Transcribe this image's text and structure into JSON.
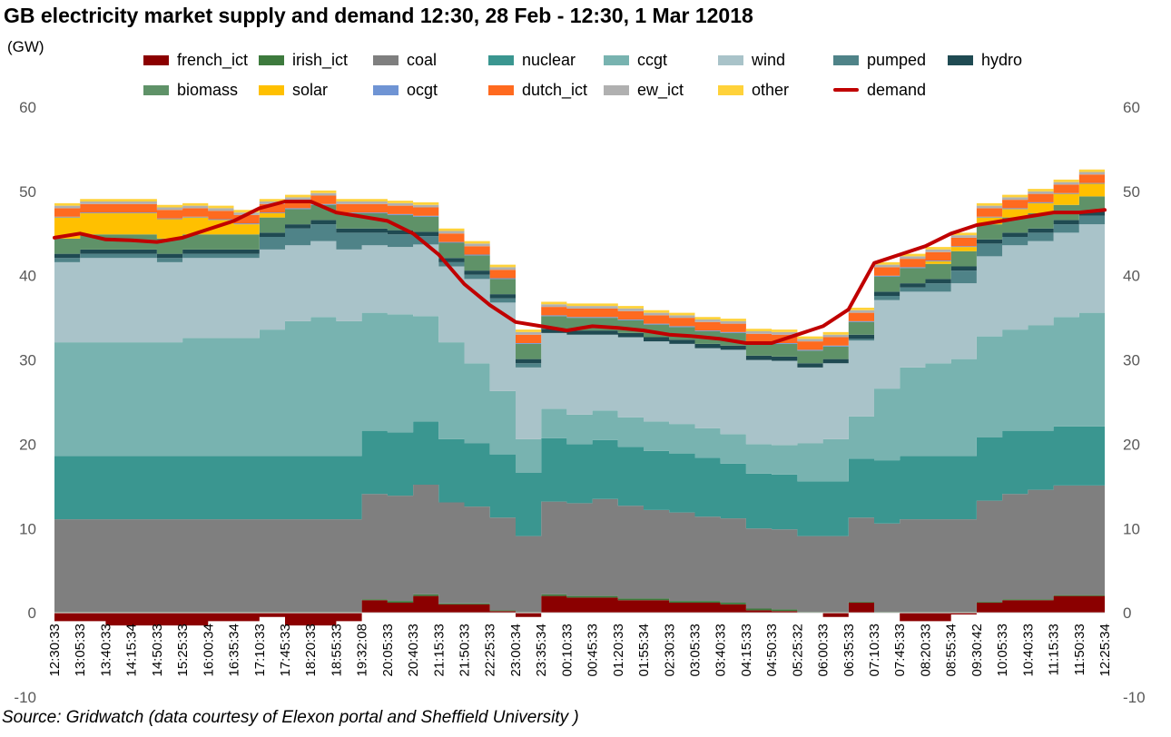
{
  "title": "GB electricity market supply and demand 12:30, 28 Feb - 12:30, 1 Mar 12018",
  "unit": "(GW)",
  "source": "Source: Gridwatch (data courtesy of Elexon portal and Sheffield University )",
  "colors": {
    "french_ict": "#8b0000",
    "irish_ict": "#3d7a3d",
    "coal": "#7f7f7f",
    "nuclear": "#3a9690",
    "ccgt": "#78b3b0",
    "wind": "#a9c3c9",
    "pumped": "#4f8388",
    "hydro": "#1f4a52",
    "biomass": "#5f9268",
    "solar": "#ffc000",
    "ocgt": "#6f94d4",
    "dutch_ict": "#ff6a1f",
    "ew_ict": "#b0b0b0",
    "other": "#ffd23a",
    "demand": "#c00000"
  },
  "chart_data": {
    "type": "area",
    "title": "GB electricity market supply and demand 12:30, 28 Feb - 12:30, 1 Mar 12018",
    "ylabel": "(GW)",
    "ylim": [
      -10,
      60
    ],
    "yticks": [
      -10,
      0,
      10,
      20,
      30,
      40,
      50,
      60
    ],
    "grid": false,
    "legend_position": "top",
    "stack_order": [
      "coal",
      "nuclear",
      "ccgt",
      "wind",
      "pumped",
      "hydro",
      "biomass",
      "solar",
      "ocgt",
      "dutch_ict",
      "ew_ict",
      "other"
    ],
    "x": [
      "12:30:33",
      "13:05:33",
      "13:40:33",
      "14:15:34",
      "14:50:33",
      "15:25:33",
      "16:00:34",
      "16:35:34",
      "17:10:33",
      "17:45:33",
      "18:20:33",
      "18:55:33",
      "19:32:08",
      "20:05:33",
      "20:40:33",
      "21:15:33",
      "21:50:33",
      "22:25:33",
      "23:00:34",
      "23:35:34",
      "00:10:33",
      "00:45:33",
      "01:20:33",
      "01:55:34",
      "02:30:33",
      "03:05:33",
      "03:40:33",
      "04:15:33",
      "04:50:33",
      "05:25:32",
      "06:00:33",
      "06:35:33",
      "07:10:33",
      "07:45:33",
      "08:20:33",
      "08:55:34",
      "09:30:42",
      "10:05:33",
      "10:40:33",
      "11:15:33",
      "11:50:33",
      "12:25:34"
    ],
    "series": [
      {
        "name": "french_ict",
        "values": [
          -1.0,
          -1.0,
          -1.5,
          -1.5,
          -1.5,
          -1.5,
          -1.0,
          -1.0,
          -0.5,
          -1.5,
          -1.5,
          -1.0,
          1.5,
          1.2,
          2.0,
          1.0,
          1.0,
          0.2,
          -0.5,
          2.0,
          1.8,
          1.8,
          1.5,
          1.5,
          1.2,
          1.2,
          1.0,
          0.3,
          0.2,
          0.0,
          -0.5,
          1.2,
          0.0,
          -1.0,
          -1.0,
          -0.2,
          1.2,
          1.5,
          1.5,
          2.0,
          2.0,
          1.5
        ]
      },
      {
        "name": "irish_ict",
        "values": [
          0.1,
          0.1,
          0.1,
          0.1,
          0.1,
          0.1,
          0.1,
          0.1,
          0.1,
          0.1,
          0.1,
          0.1,
          0.1,
          0.2,
          0.2,
          0.1,
          0.1,
          0.1,
          0.1,
          0.2,
          0.2,
          0.2,
          0.2,
          0.2,
          0.2,
          0.2,
          0.2,
          0.2,
          0.2,
          0.1,
          0.1,
          0.1,
          0.1,
          0.1,
          0.1,
          0.1,
          0.1,
          0.1,
          0.1,
          0.1,
          0.1,
          0.1
        ]
      },
      {
        "name": "coal",
        "values": [
          11.0,
          11.0,
          11.0,
          11.0,
          11.0,
          11.0,
          11.0,
          11.0,
          11.0,
          11.0,
          11.0,
          11.0,
          12.5,
          12.5,
          13.0,
          12.0,
          11.5,
          11.0,
          9.0,
          11.0,
          11.0,
          11.5,
          11.0,
          10.5,
          10.5,
          10.0,
          10.0,
          9.5,
          9.5,
          9.0,
          9.0,
          10.0,
          10.5,
          11.0,
          11.0,
          11.0,
          12.0,
          12.5,
          13.0,
          13.0,
          13.0,
          13.0
        ]
      },
      {
        "name": "nuclear",
        "values": [
          7.5,
          7.5,
          7.5,
          7.5,
          7.5,
          7.5,
          7.5,
          7.5,
          7.5,
          7.5,
          7.5,
          7.5,
          7.5,
          7.5,
          7.5,
          7.5,
          7.5,
          7.5,
          7.5,
          7.5,
          7.0,
          7.0,
          7.0,
          7.0,
          7.0,
          7.0,
          6.5,
          6.5,
          6.5,
          6.5,
          6.5,
          7.0,
          7.5,
          7.5,
          7.5,
          7.5,
          7.5,
          7.5,
          7.0,
          7.0,
          7.0,
          7.0
        ]
      },
      {
        "name": "ccgt",
        "values": [
          13.5,
          13.5,
          13.5,
          13.5,
          13.5,
          14.0,
          14.0,
          14.0,
          15.0,
          16.0,
          16.5,
          16.0,
          14.0,
          14.0,
          12.5,
          11.5,
          9.5,
          7.5,
          4.0,
          3.5,
          3.5,
          3.5,
          3.5,
          3.5,
          3.5,
          3.5,
          3.5,
          3.5,
          3.5,
          4.5,
          5.0,
          5.0,
          8.5,
          10.5,
          11.0,
          11.5,
          12.0,
          12.0,
          12.5,
          13.0,
          13.5,
          13.5
        ]
      },
      {
        "name": "wind",
        "values": [
          9.5,
          10.0,
          10.0,
          10.0,
          9.5,
          9.5,
          9.5,
          9.5,
          9.5,
          9.0,
          9.0,
          8.5,
          8.0,
          8.0,
          8.5,
          9.0,
          10.0,
          10.5,
          8.5,
          9.0,
          9.5,
          9.0,
          9.5,
          9.5,
          9.5,
          9.5,
          10.0,
          10.0,
          10.0,
          9.0,
          9.0,
          9.0,
          10.5,
          9.0,
          8.5,
          9.0,
          9.5,
          10.0,
          10.0,
          10.0,
          10.5,
          10.5
        ]
      },
      {
        "name": "pumped",
        "values": [
          0.5,
          0.5,
          0.5,
          0.5,
          0.5,
          0.5,
          0.5,
          0.5,
          1.5,
          2.0,
          2.0,
          2.0,
          1.5,
          1.5,
          1.0,
          0.5,
          0.5,
          0.5,
          0.5,
          0.0,
          0.0,
          0.0,
          0.0,
          0.0,
          0.0,
          0.0,
          0.0,
          0.0,
          0.0,
          0.0,
          0.0,
          0.2,
          0.5,
          0.5,
          1.0,
          1.5,
          1.5,
          1.0,
          1.0,
          1.0,
          1.0,
          1.0
        ]
      },
      {
        "name": "hydro",
        "values": [
          0.5,
          0.5,
          0.5,
          0.5,
          0.5,
          0.5,
          0.5,
          0.5,
          0.5,
          0.5,
          0.5,
          0.5,
          0.5,
          0.5,
          0.5,
          0.5,
          0.5,
          0.5,
          0.5,
          0.5,
          0.5,
          0.5,
          0.5,
          0.5,
          0.5,
          0.5,
          0.5,
          0.5,
          0.5,
          0.5,
          0.5,
          0.5,
          0.5,
          0.5,
          0.5,
          0.5,
          0.5,
          0.5,
          0.5,
          0.5,
          0.5,
          0.5
        ]
      },
      {
        "name": "biomass",
        "values": [
          1.8,
          1.8,
          1.8,
          1.8,
          1.8,
          1.8,
          1.8,
          1.8,
          1.8,
          1.8,
          1.8,
          1.8,
          1.8,
          1.8,
          1.8,
          1.8,
          1.8,
          1.8,
          1.8,
          1.5,
          1.5,
          1.5,
          1.5,
          1.5,
          1.5,
          1.5,
          1.5,
          1.5,
          1.5,
          1.5,
          1.5,
          1.5,
          1.8,
          1.8,
          1.8,
          1.8,
          1.8,
          1.8,
          1.8,
          1.8,
          1.8,
          1.8
        ]
      },
      {
        "name": "solar",
        "values": [
          2.5,
          2.5,
          2.5,
          2.5,
          2.3,
          2.0,
          1.7,
          1.2,
          0.5,
          0.0,
          0.0,
          0.0,
          0.0,
          0.0,
          0.0,
          0.0,
          0.0,
          0.0,
          0.0,
          0.0,
          0.0,
          0.0,
          0.0,
          0.0,
          0.0,
          0.0,
          0.0,
          0.0,
          0.0,
          0.0,
          0.0,
          0.0,
          0.0,
          0.0,
          0.3,
          0.5,
          0.8,
          1.0,
          1.2,
          1.3,
          1.5,
          1.5
        ]
      },
      {
        "name": "ocgt",
        "values": [
          0.1,
          0.1,
          0.1,
          0.1,
          0.1,
          0.1,
          0.1,
          0.1,
          0.1,
          0.1,
          0.1,
          0.1,
          0.1,
          0.1,
          0.1,
          0.1,
          0.1,
          0.1,
          0.1,
          0.1,
          0.1,
          0.1,
          0.1,
          0.1,
          0.1,
          0.1,
          0.1,
          0.1,
          0.1,
          0.1,
          0.1,
          0.1,
          0.1,
          0.1,
          0.1,
          0.1,
          0.1,
          0.1,
          0.1,
          0.1,
          0.1,
          0.1
        ]
      },
      {
        "name": "dutch_ict",
        "values": [
          1.0,
          1.0,
          1.0,
          1.0,
          1.0,
          1.0,
          1.0,
          1.0,
          1.0,
          1.0,
          1.0,
          1.0,
          1.0,
          1.0,
          1.0,
          1.0,
          1.0,
          1.0,
          1.0,
          1.0,
          1.0,
          1.0,
          1.0,
          1.0,
          1.0,
          1.0,
          1.0,
          1.0,
          1.0,
          1.0,
          1.0,
          1.0,
          1.0,
          1.0,
          1.0,
          1.0,
          1.0,
          1.0,
          1.0,
          1.0,
          1.0,
          1.0
        ]
      },
      {
        "name": "ew_ict",
        "values": [
          0.3,
          0.3,
          0.3,
          0.3,
          0.3,
          0.3,
          0.3,
          0.3,
          0.3,
          0.3,
          0.3,
          0.3,
          0.3,
          0.3,
          0.3,
          0.3,
          0.3,
          0.3,
          0.3,
          0.3,
          0.3,
          0.3,
          0.3,
          0.3,
          0.3,
          0.3,
          0.3,
          0.3,
          0.3,
          0.3,
          0.3,
          0.3,
          0.3,
          0.3,
          0.3,
          0.3,
          0.3,
          0.3,
          0.3,
          0.3,
          0.3,
          0.3
        ]
      },
      {
        "name": "other",
        "values": [
          0.3,
          0.3,
          0.3,
          0.3,
          0.3,
          0.3,
          0.3,
          0.3,
          0.3,
          0.3,
          0.3,
          0.3,
          0.3,
          0.3,
          0.3,
          0.3,
          0.3,
          0.3,
          0.3,
          0.3,
          0.3,
          0.3,
          0.3,
          0.3,
          0.3,
          0.3,
          0.3,
          0.3,
          0.3,
          0.3,
          0.3,
          0.3,
          0.3,
          0.3,
          0.3,
          0.3,
          0.3,
          0.3,
          0.3,
          0.3,
          0.3,
          0.3
        ]
      },
      {
        "name": "demand",
        "values": [
          44.5,
          45.0,
          44.3,
          44.2,
          44.0,
          44.5,
          45.5,
          46.5,
          48.0,
          48.8,
          48.8,
          47.5,
          47.0,
          46.5,
          45.0,
          42.5,
          39.0,
          36.5,
          34.5,
          34.0,
          33.5,
          34.0,
          33.8,
          33.5,
          33.0,
          32.8,
          32.5,
          32.0,
          32.0,
          33.0,
          34.0,
          36.0,
          41.5,
          42.5,
          43.5,
          45.0,
          46.0,
          46.5,
          47.0,
          47.5,
          47.5,
          47.8
        ]
      }
    ]
  },
  "legend_labels": {
    "french_ict": "french_ict",
    "irish_ict": "irish_ict",
    "coal": "coal",
    "nuclear": "nuclear",
    "ccgt": "ccgt",
    "wind": "wind",
    "pumped": "pumped",
    "hydro": "hydro",
    "biomass": "biomass",
    "solar": "solar",
    "ocgt": "ocgt",
    "dutch_ict": "dutch_ict",
    "ew_ict": "ew_ict",
    "other": "other",
    "demand": "demand"
  }
}
